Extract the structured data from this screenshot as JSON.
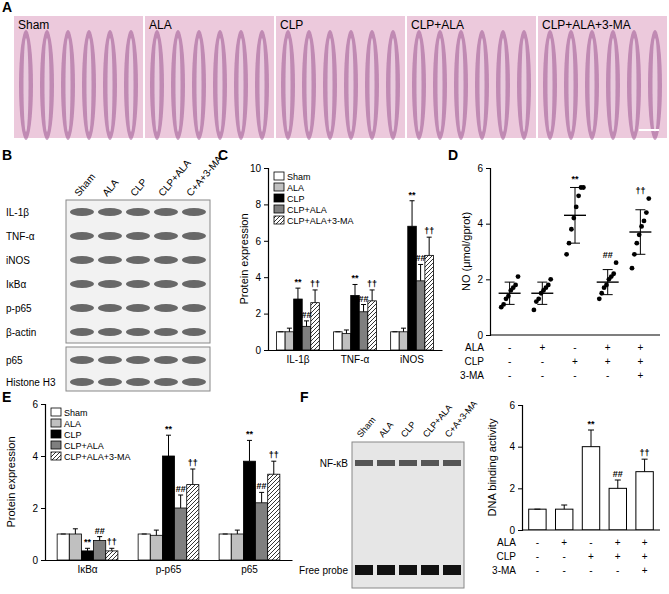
{
  "figure": {
    "panel_letters": [
      "A",
      "B",
      "C",
      "D",
      "E",
      "F"
    ]
  },
  "panel_a": {
    "images": [
      "Sham",
      "ALA",
      "CLP",
      "CLP+ALA",
      "CLP+ALA+3-MA"
    ]
  },
  "panel_b": {
    "lanes": [
      "Sham",
      "ALA",
      "CLP",
      "CLP+ALA",
      "C+A+3-MA"
    ],
    "rows": [
      "IL-1β",
      "TNF-α",
      "iNOS",
      "IκBα",
      "p-p65",
      "β-actin",
      "p65",
      "Histone H3"
    ]
  },
  "panel_f_gel": {
    "lanes": [
      "Sham",
      "ALA",
      "CLP",
      "CLP+ALA",
      "C+A+3-MA"
    ],
    "labels": [
      "NF-κB",
      "Free probe"
    ]
  },
  "chart_data": [
    {
      "type": "bar",
      "y_label": "Protein expression",
      "categories": [
        "IL-1β",
        "TNF-α",
        "iNOS"
      ],
      "ylim": [
        0,
        10
      ],
      "yticks": [
        0,
        2,
        4,
        6,
        8,
        10
      ],
      "legend": "upper left",
      "series": [
        {
          "name": "Sham",
          "color": "#ffffff",
          "values": [
            1,
            1,
            1
          ],
          "errors": [
            0,
            0,
            0
          ]
        },
        {
          "name": "ALA",
          "color": "#c0c0c0",
          "values": [
            1.0,
            0.9,
            1.0
          ],
          "errors": [
            0.2,
            0.2,
            0.2
          ]
        },
        {
          "name": "CLP",
          "color": "#000000",
          "values": [
            2.8,
            3.0,
            6.8
          ],
          "errors": [
            0.6,
            0.6,
            1.4
          ],
          "significance": [
            "**",
            "**",
            "**"
          ]
        },
        {
          "name": "CLP+ALA",
          "color": "#7f7f7f",
          "values": [
            1.3,
            2.1,
            3.8
          ],
          "errors": [
            0.3,
            0.4,
            0.9
          ],
          "significance": [
            "##",
            "##",
            "##"
          ]
        },
        {
          "name": "CLP+ALA+3-MA",
          "color": "#ffffff",
          "marker": "hatch",
          "values": [
            2.6,
            2.7,
            5.2
          ],
          "errors": [
            0.7,
            0.6,
            1.0
          ],
          "significance": [
            "††",
            "††",
            "††"
          ]
        }
      ]
    },
    {
      "type": "scatter",
      "y_label": "NO (μmol/gprot)",
      "ylim": [
        0,
        6
      ],
      "yticks": [
        0,
        2,
        4,
        6
      ],
      "marker": "circle",
      "color": "#000000",
      "values": [
        [
          1.0,
          1.1,
          1.3,
          1.4,
          1.6,
          1.7,
          1.8,
          2.1
        ],
        [
          0.9,
          1.2,
          1.3,
          1.5,
          1.6,
          1.7,
          1.8,
          2.0
        ],
        [
          2.9,
          3.3,
          3.8,
          4.2,
          4.6,
          5.0,
          5.3,
          5.3
        ],
        [
          1.3,
          1.5,
          1.7,
          1.8,
          2.0,
          2.1,
          2.2,
          2.6
        ],
        [
          2.4,
          2.9,
          3.3,
          3.6,
          3.9,
          4.1,
          4.4,
          4.9
        ]
      ],
      "means": [
        1.5,
        1.5,
        4.3,
        1.9,
        3.7
      ],
      "errors": [
        0.4,
        0.4,
        1.0,
        0.45,
        0.8
      ],
      "significance": [
        null,
        null,
        "**",
        "##",
        "††"
      ],
      "conditions": {
        "rows": [
          "ALA",
          "CLP",
          "3-MA"
        ],
        "cells": [
          [
            "-",
            "+",
            "-",
            "+",
            "+"
          ],
          [
            "-",
            "-",
            "+",
            "+",
            "+"
          ],
          [
            "-",
            "-",
            "-",
            "-",
            "+"
          ]
        ]
      }
    },
    {
      "type": "bar",
      "y_label": "Protein expression",
      "categories": [
        "IκBα",
        "p-p65",
        "p65"
      ],
      "ylim": [
        0,
        6
      ],
      "yticks": [
        0,
        2,
        4,
        6
      ],
      "legend": "upper left",
      "series": [
        {
          "name": "Sham",
          "color": "#ffffff",
          "values": [
            1,
            1,
            1
          ],
          "errors": [
            0,
            0,
            0
          ]
        },
        {
          "name": "ALA",
          "color": "#c0c0c0",
          "values": [
            1.0,
            0.95,
            1.0
          ],
          "errors": [
            0.2,
            0.2,
            0.15
          ]
        },
        {
          "name": "CLP",
          "color": "#000000",
          "values": [
            0.35,
            4.0,
            3.8
          ],
          "errors": [
            0.1,
            0.8,
            0.8
          ],
          "significance": [
            "**",
            "**",
            "**"
          ]
        },
        {
          "name": "CLP+ALA",
          "color": "#7f7f7f",
          "values": [
            0.75,
            2.0,
            2.2
          ],
          "errors": [
            0.15,
            0.5,
            0.4
          ],
          "significance": [
            "##",
            "##",
            "##"
          ]
        },
        {
          "name": "CLP+ALA+3-MA",
          "color": "#ffffff",
          "marker": "hatch",
          "values": [
            0.35,
            2.9,
            3.3
          ],
          "errors": [
            0.1,
            0.6,
            0.5
          ],
          "significance": [
            "††",
            "††",
            "††"
          ]
        }
      ]
    },
    {
      "type": "bar",
      "y_label": "DNA binding activity",
      "ylim": [
        0,
        6
      ],
      "yticks": [
        0,
        2,
        4,
        6
      ],
      "color": "#ffffff",
      "values": [
        1,
        1,
        4.0,
        2.0,
        2.8
      ],
      "errors": [
        0,
        0.2,
        0.8,
        0.4,
        0.6
      ],
      "significance": [
        null,
        null,
        "**",
        "##",
        "††"
      ],
      "conditions": {
        "rows": [
          "ALA",
          "CLP",
          "3-MA"
        ],
        "cells": [
          [
            "-",
            "+",
            "-",
            "+",
            "+"
          ],
          [
            "-",
            "-",
            "+",
            "+",
            "+"
          ],
          [
            "-",
            "-",
            "-",
            "-",
            "+"
          ]
        ]
      }
    }
  ]
}
